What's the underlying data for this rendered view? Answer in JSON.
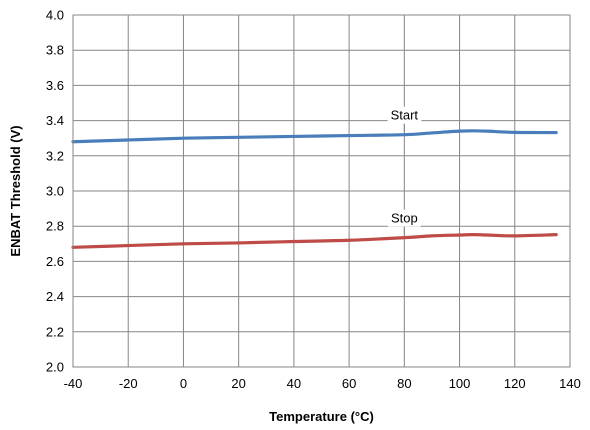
{
  "chart_data": {
    "type": "line",
    "title": "",
    "xlabel": "Temperature (°C)",
    "ylabel": "ENBAT Threshold (V)",
    "xlim": [
      -40,
      140
    ],
    "ylim": [
      2.0,
      4.0
    ],
    "x_ticks": [
      "-40",
      "-20",
      "0",
      "20",
      "40",
      "60",
      "80",
      "100",
      "120",
      "140"
    ],
    "y_ticks": [
      "2.0",
      "2.2",
      "2.4",
      "2.6",
      "2.8",
      "3.0",
      "3.2",
      "3.4",
      "3.6",
      "3.8",
      "4.0"
    ],
    "grid": true,
    "legend": "none",
    "series": [
      {
        "name": "Start",
        "color": "#4a7ebb",
        "x": [
          -40,
          -20,
          0,
          20,
          40,
          60,
          80,
          90,
          100,
          105,
          110,
          120,
          135
        ],
        "y": [
          3.28,
          3.29,
          3.3,
          3.305,
          3.31,
          3.315,
          3.32,
          3.33,
          3.34,
          3.342,
          3.34,
          3.333,
          3.332
        ]
      },
      {
        "name": "Stop",
        "color": "#be4b48",
        "x": [
          -40,
          -20,
          0,
          20,
          40,
          60,
          80,
          90,
          100,
          105,
          110,
          120,
          135
        ],
        "y": [
          2.68,
          2.69,
          2.7,
          2.705,
          2.713,
          2.72,
          2.735,
          2.745,
          2.75,
          2.752,
          2.75,
          2.745,
          2.752
        ]
      }
    ],
    "annotations": [
      {
        "text": "Start",
        "x": 80,
        "y": 3.32
      },
      {
        "text": "Stop",
        "x": 80,
        "y": 2.735
      }
    ]
  }
}
